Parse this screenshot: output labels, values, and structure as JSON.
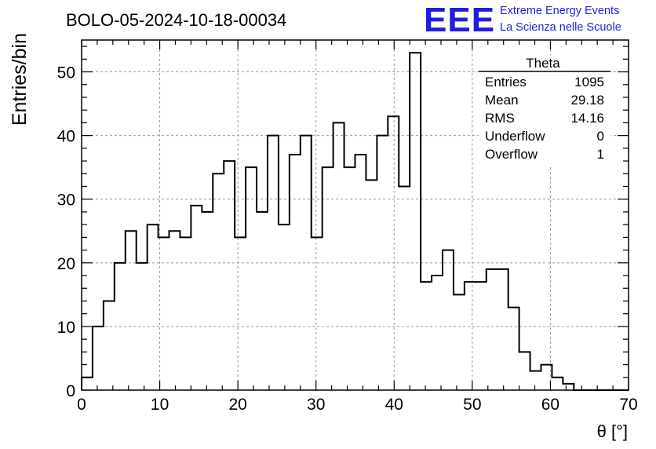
{
  "header": {
    "run_title": "BOLO-05-2024-10-18-00034",
    "logo_text": "EEE",
    "project_line1": "Extreme Energy Events",
    "project_line2": "La Scienza nelle Scuole",
    "brand_color": "#1f1fe0"
  },
  "stats": {
    "title": "Theta",
    "rows": [
      {
        "label": "Entries",
        "value": "1095"
      },
      {
        "label": "Mean",
        "value": "29.18"
      },
      {
        "label": "RMS",
        "value": "14.16"
      },
      {
        "label": "Underflow",
        "value": "0"
      },
      {
        "label": "Overflow",
        "value": "1"
      }
    ]
  },
  "chart_data": {
    "type": "bar",
    "style": "step-histogram",
    "title": "BOLO-05-2024-10-18-00034",
    "xlabel": "θ [°]",
    "ylabel": "Entries/bin",
    "xlim": [
      0,
      70
    ],
    "ylim": [
      0,
      55
    ],
    "bin_width": 1.4,
    "bin_edges_start": 0,
    "xticks": [
      0,
      10,
      20,
      30,
      40,
      50,
      60,
      70
    ],
    "yticks": [
      0,
      10,
      20,
      30,
      40,
      50
    ],
    "grid": true,
    "values": [
      2,
      10,
      14,
      20,
      25,
      20,
      26,
      24,
      25,
      24,
      29,
      28,
      34,
      36,
      24,
      35,
      28,
      40,
      26,
      37,
      40,
      24,
      35,
      42,
      35,
      37,
      33,
      40,
      43,
      32,
      53,
      17,
      18,
      22,
      15,
      17,
      17,
      19,
      19,
      13,
      6,
      3,
      4,
      2,
      1,
      0,
      0,
      0,
      0,
      0
    ]
  }
}
